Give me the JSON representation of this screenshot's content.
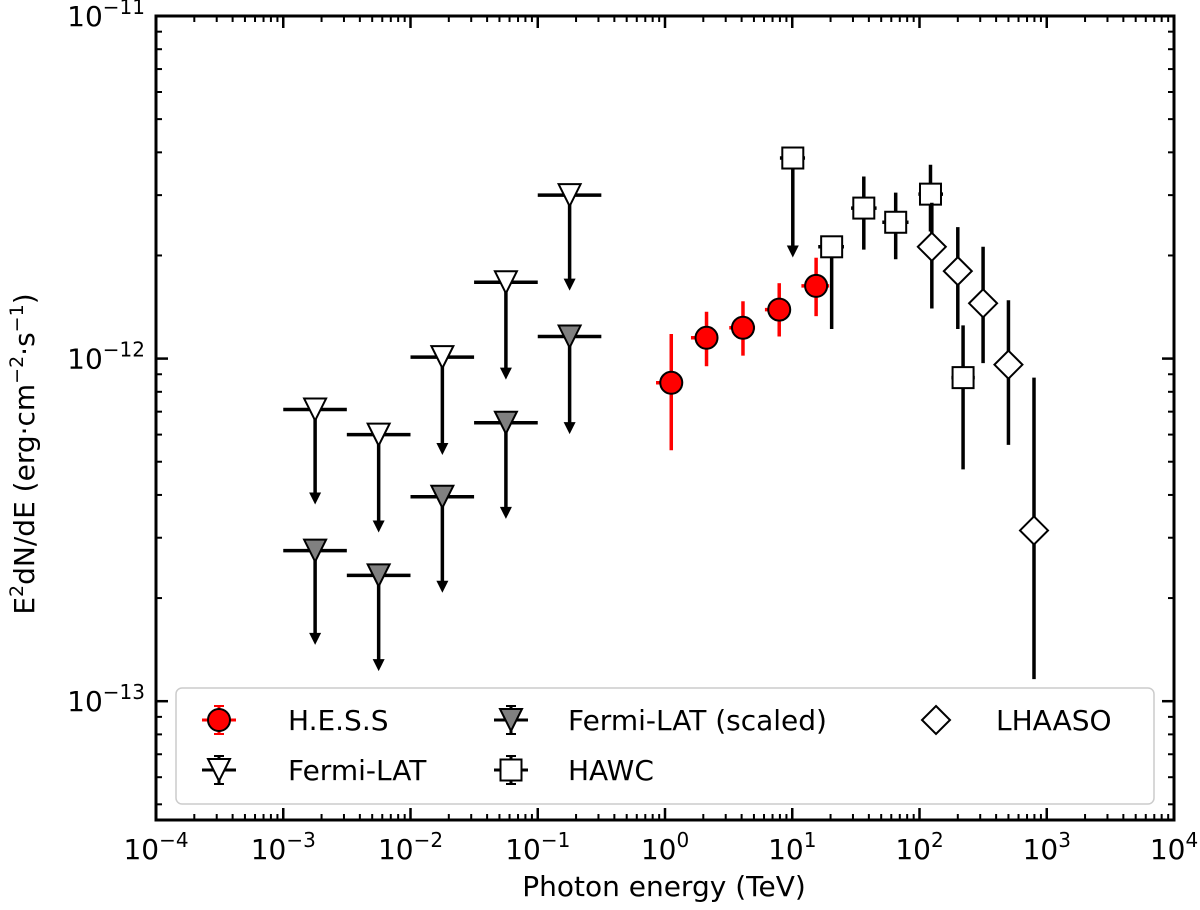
{
  "chart_data": {
    "type": "scatter",
    "title": "",
    "xlabel": "Photon energy (TeV)",
    "ylabel": {
      "base": "E",
      "sup1": "2",
      "mid": "dN/dE (erg·cm",
      "sup2": "−2",
      "mid2": "·s",
      "sup3": "−1",
      "end": ")"
    },
    "xscale": "log",
    "yscale": "log",
    "xlim": [
      0.0001,
      10000
    ],
    "ylim": [
      4.5e-14,
      1e-11
    ],
    "x_ticks": [
      {
        "value": 0.0001,
        "base": "10",
        "exp": "−4"
      },
      {
        "value": 0.001,
        "base": "10",
        "exp": "−3"
      },
      {
        "value": 0.01,
        "base": "10",
        "exp": "−2"
      },
      {
        "value": 0.1,
        "base": "10",
        "exp": "−1"
      },
      {
        "value": 1,
        "base": "10",
        "exp": "0"
      },
      {
        "value": 10,
        "base": "10",
        "exp": "1"
      },
      {
        "value": 100,
        "base": "10",
        "exp": "2"
      },
      {
        "value": 1000,
        "base": "10",
        "exp": "3"
      },
      {
        "value": 10000,
        "base": "10",
        "exp": "4"
      }
    ],
    "y_ticks": [
      {
        "value": 1e-13,
        "base": "10",
        "exp": "−13"
      },
      {
        "value": 1e-12,
        "base": "10",
        "exp": "−12"
      },
      {
        "value": 1e-11,
        "base": "10",
        "exp": "−11"
      }
    ],
    "legend_position": "lower center, 3 columns",
    "series": [
      {
        "name": "H.E.S.S",
        "marker": "circle",
        "color": "#ff0000",
        "facecolor": "#ff0000",
        "points": [
          {
            "x": 1.12,
            "y": 8.5e-13,
            "ylo": 5.4e-13,
            "yhi": 1.18e-12,
            "xlo": 0.85,
            "xhi": 1.35
          },
          {
            "x": 2.12,
            "y": 1.15e-12,
            "ylo": 9.5e-13,
            "yhi": 1.37e-12,
            "xlo": 1.6,
            "xhi": 2.6
          },
          {
            "x": 4.1,
            "y": 1.23e-12,
            "ylo": 1.02e-12,
            "yhi": 1.47e-12,
            "xlo": 3.2,
            "xhi": 5.1
          },
          {
            "x": 7.9,
            "y": 1.39e-12,
            "ylo": 1.16e-12,
            "yhi": 1.66e-12,
            "xlo": 6.1,
            "xhi": 9.7
          },
          {
            "x": 15.4,
            "y": 1.63e-12,
            "ylo": 1.33e-12,
            "yhi": 1.97e-12,
            "xlo": 11.8,
            "xhi": 19.5
          }
        ]
      },
      {
        "name": "Fermi-LAT",
        "marker": "triangle_down",
        "color": "#000000",
        "facecolor": "#ffffff",
        "upper_limit": true,
        "points": [
          {
            "x": 0.00178,
            "y": 7.1e-13,
            "xlo": 0.001,
            "xhi": 0.00316,
            "arrow_to": 3.8e-13
          },
          {
            "x": 0.00562,
            "y": 6e-13,
            "xlo": 0.00316,
            "xhi": 0.01,
            "arrow_to": 3.15e-13
          },
          {
            "x": 0.0178,
            "y": 1.01e-12,
            "xlo": 0.01,
            "xhi": 0.0316,
            "arrow_to": 5.3e-13
          },
          {
            "x": 0.0562,
            "y": 1.67e-12,
            "xlo": 0.0316,
            "xhi": 0.1,
            "arrow_to": 8.8e-13
          },
          {
            "x": 0.178,
            "y": 3e-12,
            "xlo": 0.1,
            "xhi": 0.316,
            "arrow_to": 1.6e-12
          }
        ]
      },
      {
        "name": "Fermi-LAT (scaled)",
        "marker": "triangle_down",
        "color": "#000000",
        "facecolor": "#808080",
        "upper_limit": true,
        "points": [
          {
            "x": 0.00178,
            "y": 2.75e-13,
            "xlo": 0.001,
            "xhi": 0.00316,
            "arrow_to": 1.48e-13
          },
          {
            "x": 0.00562,
            "y": 2.33e-13,
            "xlo": 0.00316,
            "xhi": 0.01,
            "arrow_to": 1.24e-13
          },
          {
            "x": 0.0178,
            "y": 3.95e-13,
            "xlo": 0.01,
            "xhi": 0.0316,
            "arrow_to": 2.1e-13
          },
          {
            "x": 0.0562,
            "y": 6.5e-13,
            "xlo": 0.0316,
            "xhi": 0.1,
            "arrow_to": 3.45e-13
          },
          {
            "x": 0.178,
            "y": 1.16e-12,
            "xlo": 0.1,
            "xhi": 0.316,
            "arrow_to": 6.1e-13
          }
        ]
      },
      {
        "name": "HAWC",
        "marker": "square",
        "color": "#000000",
        "facecolor": "#ffffff",
        "points": [
          {
            "x": 10.1,
            "y": 3.85e-12,
            "xlo": 8.0,
            "xhi": 12.6,
            "upper_limit": true,
            "arrow_to": 2e-12
          },
          {
            "x": 20.4,
            "y": 2.12e-12,
            "ylo": 1.22e-12,
            "yhi": 2.12e-12,
            "xlo": 16.0,
            "xhi": 25.5
          },
          {
            "x": 36.5,
            "y": 2.75e-12,
            "ylo": 2.08e-12,
            "yhi": 3.4e-12,
            "xlo": 29.0,
            "xhi": 46.0
          },
          {
            "x": 65.0,
            "y": 2.5e-12,
            "ylo": 1.95e-12,
            "yhi": 3.05e-12,
            "xlo": 51.0,
            "xhi": 82.0
          },
          {
            "x": 122.0,
            "y": 3.02e-12,
            "ylo": 2.35e-12,
            "yhi": 3.68e-12,
            "xlo": 98.0,
            "xhi": 153.0
          },
          {
            "x": 220.0,
            "y": 8.8e-13,
            "ylo": 4.75e-13,
            "yhi": 1.25e-12,
            "xlo": 178.0,
            "xhi": 272.0
          }
        ]
      },
      {
        "name": "LHAASO",
        "marker": "diamond",
        "color": "#000000",
        "facecolor": "#ffffff",
        "points": [
          {
            "x": 125.0,
            "y": 2.12e-12,
            "ylo": 1.4e-12,
            "yhi": 2.85e-12
          },
          {
            "x": 200.0,
            "y": 1.8e-12,
            "ylo": 1.22e-12,
            "yhi": 2.42e-12
          },
          {
            "x": 316.0,
            "y": 1.45e-12,
            "ylo": 9.7e-13,
            "yhi": 2.12e-12
          },
          {
            "x": 500.0,
            "y": 9.6e-13,
            "ylo": 5.6e-13,
            "yhi": 1.48e-12
          },
          {
            "x": 794.0,
            "y": 3.15e-13,
            "ylo": 1.16e-13,
            "yhi": 8.8e-13
          }
        ]
      }
    ]
  }
}
